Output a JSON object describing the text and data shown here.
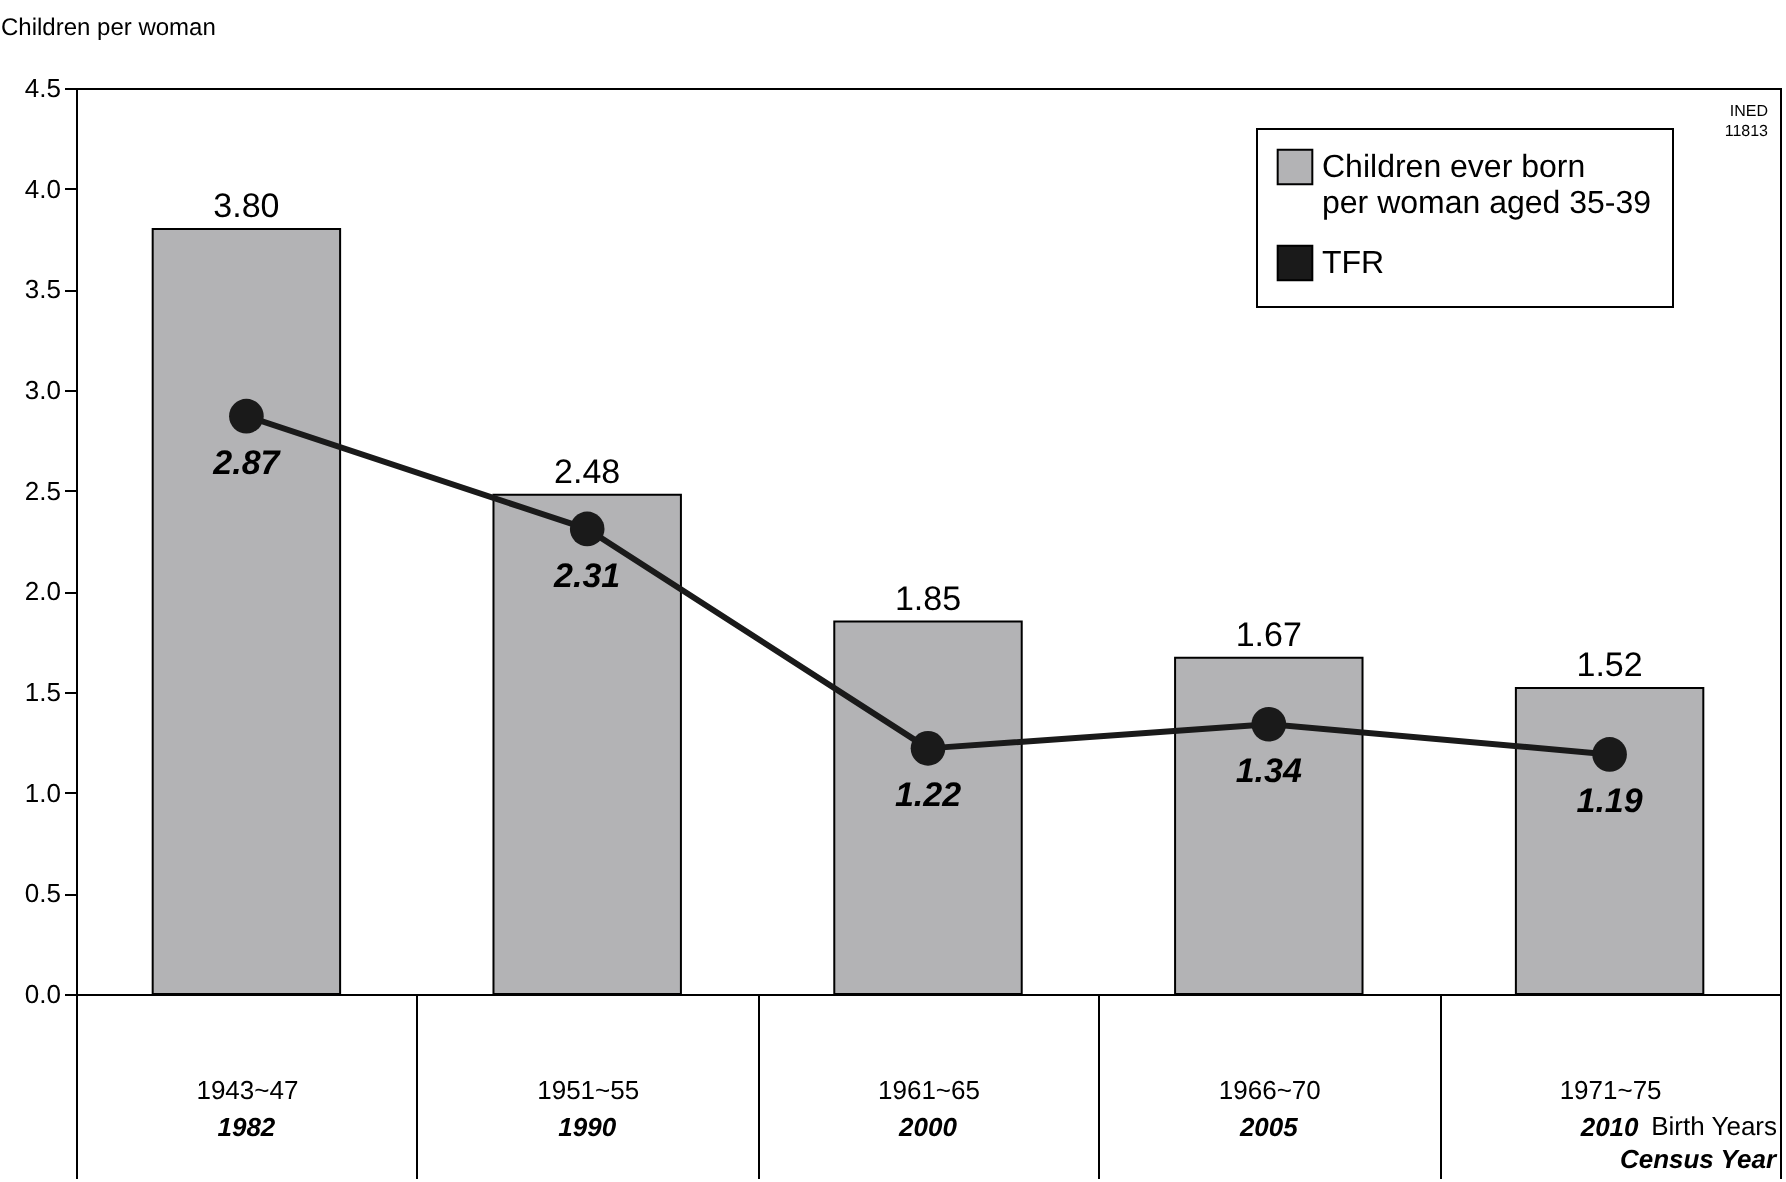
{
  "chart_data": {
    "type": "bar",
    "categories": [
      "1943~47",
      "1951~55",
      "1961~65",
      "1966~70",
      "1971~75"
    ],
    "series": [
      {
        "name": "Children ever born per woman aged 35-39",
        "color": "#b3b3b5",
        "values": [
          3.8,
          2.48,
          1.85,
          1.67,
          1.52
        ],
        "value_labels": [
          "3.80",
          "2.48",
          "1.85",
          "1.67",
          "1.52"
        ]
      },
      {
        "name": "TFR",
        "type": "line",
        "color": "#1a1a1a",
        "values": [
          2.87,
          2.31,
          1.22,
          1.34,
          1.19
        ],
        "value_labels": [
          "2.87",
          "2.31",
          "1.22",
          "1.34",
          "1.19"
        ]
      }
    ],
    "ylabel": "Children per woman",
    "xlabel": "Birth Years",
    "ylim": [
      0,
      4.5
    ],
    "yticks": [
      {
        "value": 0,
        "label": "0.0"
      },
      0.5,
      {
        "value": 1,
        "label": "1.0"
      },
      1.5,
      {
        "value": 2,
        "label": "2.0"
      },
      2.5,
      {
        "value": 3,
        "label": "3.0"
      },
      3.5,
      {
        "value": 4,
        "label": "4.0"
      },
      4.5
    ],
    "annotations": [
      "1982",
      "1990",
      "2000",
      "2005",
      "2010",
      "Census Year",
      "INED 11813"
    ],
    "marker": "circle",
    "line_style": "solid",
    "grid": false,
    "legend": "top right"
  }
}
